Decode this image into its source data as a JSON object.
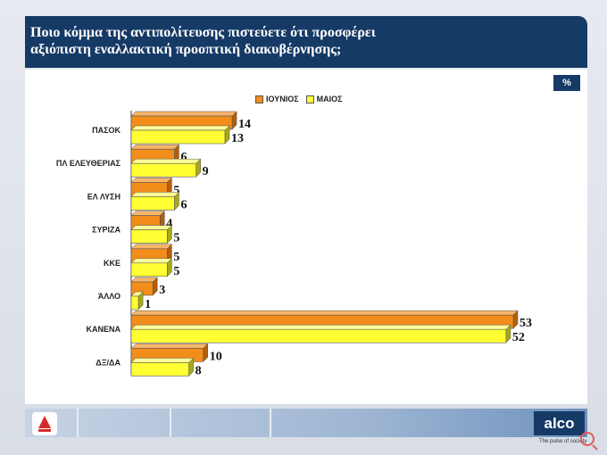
{
  "header": {
    "title_line1": "Ποιο κόμμα της αντιπολίτευσης πιστεύετε ότι προσφέρει",
    "title_line2": "αξιόπιστη εναλλακτική προοπτική διακυβέρνησης;"
  },
  "badge": "%",
  "footer": {
    "brand": "alco",
    "tagline": "The pulse of society"
  },
  "colors": {
    "series1": "#f28c1a",
    "series2": "#ffff33",
    "header": "#163a66"
  },
  "chart_data": {
    "type": "bar",
    "orientation": "horizontal",
    "categories": [
      "ΠΑΣΟΚ",
      "ΠΛ ΕΛΕΥΘΕΡΙΑΣ",
      "ΕΛ ΛΥΣΗ",
      "ΣΥΡΙΖΑ",
      "ΚΚΕ",
      "ΆΛΛΟ",
      "ΚΑΝΕΝΑ",
      "ΔΞ/ΔΑ"
    ],
    "series": [
      {
        "name": "ΙΟΥΝΙΟΣ",
        "values": [
          14,
          6,
          5,
          4,
          5,
          3,
          53,
          10
        ],
        "color": "#f28c1a"
      },
      {
        "name": "ΜΑΙΟΣ",
        "values": [
          13,
          9,
          6,
          5,
          5,
          1,
          52,
          8
        ],
        "color": "#ffff33"
      }
    ],
    "xlim": [
      0,
      60
    ],
    "legend": "top-center",
    "data_labels": true
  }
}
